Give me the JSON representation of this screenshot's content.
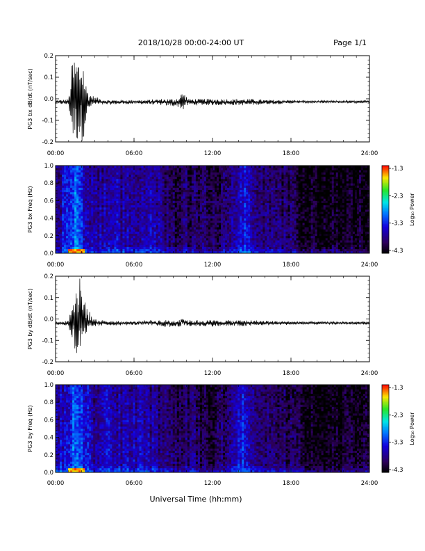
{
  "header": {
    "title": "2018/10/28  00:00-24:00 UT",
    "page": "Page 1/1"
  },
  "footer": {
    "xlabel": "Universal Time (hh:mm)"
  },
  "chart_data": [
    {
      "type": "line",
      "ylabel": "PG3 bx dB/dt (nT/sec)",
      "xlabel": "",
      "xlim": [
        0,
        24
      ],
      "ylim": [
        -0.2,
        0.2
      ],
      "x_ticks": [
        "00:00",
        "06:00",
        "12:00",
        "18:00",
        "24:00"
      ],
      "y_ticks": [
        "-0.2",
        "-0.1",
        "0.0",
        "0.1",
        "0.2"
      ],
      "baseline": -0.015,
      "series": [
        {
          "x": [
            0,
            0.5,
            1.0,
            1.3,
            1.5,
            1.7,
            1.9,
            2.1,
            2.3,
            2.5,
            2.7,
            3.0,
            3.5,
            4.0,
            5.0,
            6.0,
            7.0,
            8.0,
            9.0,
            9.5,
            9.7,
            9.9,
            10.2,
            11.0,
            12.0,
            13.0,
            14.0,
            14.5,
            15.0,
            16.0,
            17.0,
            18.0,
            19.0,
            20.0,
            21.0,
            22.0,
            23.0,
            24.0
          ],
          "y_max": [
            -0.005,
            -0.005,
            -0.0,
            0.2,
            0.2,
            0.2,
            0.2,
            0.2,
            0.08,
            0.04,
            0.02,
            0.01,
            0.0,
            -0.005,
            -0.005,
            -0.005,
            -0.005,
            0.0,
            0.0,
            0.01,
            0.04,
            0.02,
            0.0,
            0.0,
            0.0,
            0.0,
            0.0,
            0.0,
            0.0,
            -0.005,
            -0.005,
            -0.005,
            -0.008,
            -0.008,
            -0.008,
            -0.008,
            -0.008,
            -0.008
          ],
          "y_min": [
            -0.025,
            -0.025,
            -0.03,
            -0.2,
            -0.2,
            -0.2,
            -0.2,
            -0.2,
            -0.12,
            -0.07,
            -0.04,
            -0.03,
            -0.03,
            -0.028,
            -0.025,
            -0.025,
            -0.025,
            -0.03,
            -0.035,
            -0.04,
            -0.06,
            -0.04,
            -0.03,
            -0.03,
            -0.03,
            -0.03,
            -0.03,
            -0.03,
            -0.03,
            -0.025,
            -0.025,
            -0.022,
            -0.02,
            -0.02,
            -0.02,
            -0.02,
            -0.02,
            -0.02
          ]
        }
      ]
    },
    {
      "type": "heatmap",
      "ylabel": "PG3 bx Freq (Hz)",
      "xlabel": "",
      "xlim": [
        0,
        24
      ],
      "ylim": [
        0.0,
        1.0
      ],
      "x_ticks": [
        "00:00",
        "06:00",
        "12:00",
        "18:00",
        "24:00"
      ],
      "y_ticks": [
        "0.0",
        "0.2",
        "0.4",
        "0.6",
        "0.8",
        "1.0"
      ],
      "colorbar": {
        "label": "Log₁₀ Power",
        "range": [
          -4.3,
          -1.3
        ],
        "ticks": [
          "-1.3",
          "-2.3",
          "-3.3",
          "-4.3"
        ]
      },
      "activity_profile": {
        "x": [
          0,
          1.0,
          1.5,
          2.0,
          2.5,
          3.0,
          4.0,
          5.0,
          6.0,
          7.0,
          8.0,
          9.0,
          10.0,
          11.0,
          12.0,
          13.0,
          14.0,
          14.5,
          15.0,
          16.0,
          17.0,
          18.0,
          19.0,
          20.0,
          21.0,
          22.0,
          24.0
        ],
        "level": [
          -3.6,
          -3.3,
          -3.0,
          -3.2,
          -3.5,
          -3.6,
          -3.5,
          -3.6,
          -3.5,
          -3.6,
          -3.6,
          -3.9,
          -3.8,
          -3.9,
          -3.9,
          -3.8,
          -3.4,
          -3.3,
          -3.5,
          -3.7,
          -3.8,
          -3.9,
          -4.1,
          -4.2,
          -4.2,
          -4.1,
          -4.1
        ]
      }
    },
    {
      "type": "line",
      "ylabel": "PG3 by dB/dt (nT/sec)",
      "xlabel": "",
      "xlim": [
        0,
        24
      ],
      "ylim": [
        -0.2,
        0.2
      ],
      "x_ticks": [
        "00:00",
        "06:00",
        "12:00",
        "18:00",
        "24:00"
      ],
      "y_ticks": [
        "-0.2",
        "-0.1",
        "0.0",
        "0.1",
        "0.2"
      ],
      "baseline": -0.02,
      "series": [
        {
          "x": [
            0,
            0.5,
            1.0,
            1.3,
            1.5,
            1.7,
            1.9,
            2.1,
            2.3,
            2.5,
            2.7,
            3.0,
            3.5,
            4.0,
            5.0,
            6.0,
            7.0,
            8.0,
            9.0,
            9.5,
            9.7,
            9.9,
            10.2,
            11.0,
            12.0,
            13.0,
            14.0,
            14.5,
            15.0,
            16.0,
            17.0,
            18.0,
            19.0,
            20.0,
            21.0,
            22.0,
            23.0,
            24.0
          ],
          "y_max": [
            -0.012,
            -0.012,
            -0.005,
            0.12,
            0.2,
            0.18,
            0.2,
            0.12,
            0.1,
            0.05,
            0.02,
            0.0,
            -0.005,
            -0.008,
            -0.01,
            -0.01,
            -0.005,
            -0.005,
            -0.005,
            0.0,
            0.015,
            0.0,
            -0.005,
            -0.005,
            -0.005,
            -0.005,
            -0.005,
            -0.005,
            -0.005,
            -0.008,
            -0.01,
            -0.01,
            -0.012,
            -0.012,
            -0.012,
            -0.012,
            -0.012,
            -0.012
          ],
          "y_min": [
            -0.028,
            -0.028,
            -0.035,
            -0.12,
            -0.2,
            -0.2,
            -0.2,
            -0.16,
            -0.12,
            -0.08,
            -0.05,
            -0.035,
            -0.033,
            -0.03,
            -0.03,
            -0.028,
            -0.03,
            -0.035,
            -0.04,
            -0.035,
            -0.035,
            -0.035,
            -0.035,
            -0.035,
            -0.035,
            -0.035,
            -0.035,
            -0.035,
            -0.033,
            -0.03,
            -0.028,
            -0.028,
            -0.026,
            -0.026,
            -0.026,
            -0.026,
            -0.026,
            -0.026
          ]
        }
      ]
    },
    {
      "type": "heatmap",
      "ylabel": "PG3 by Freq (Hz)",
      "xlabel": "",
      "xlim": [
        0,
        24
      ],
      "ylim": [
        0.0,
        1.0
      ],
      "x_ticks": [
        "00:00",
        "06:00",
        "12:00",
        "18:00",
        "24:00"
      ],
      "y_ticks": [
        "0.0",
        "0.2",
        "0.4",
        "0.6",
        "0.8",
        "1.0"
      ],
      "colorbar": {
        "label": "Log₁₀ Power",
        "range": [
          -4.3,
          -1.3
        ],
        "ticks": [
          "-1.3",
          "-2.3",
          "-3.3",
          "-4.3"
        ]
      },
      "activity_profile": {
        "x": [
          0,
          1.0,
          1.5,
          2.0,
          2.5,
          3.0,
          4.0,
          5.0,
          6.0,
          7.0,
          8.0,
          9.0,
          10.0,
          11.0,
          12.0,
          13.0,
          14.0,
          14.5,
          15.0,
          16.0,
          17.0,
          18.0,
          19.0,
          20.0,
          21.0,
          22.0,
          24.0
        ],
        "level": [
          -3.6,
          -3.3,
          -3.0,
          -3.2,
          -3.4,
          -3.6,
          -3.5,
          -3.6,
          -3.5,
          -3.6,
          -3.7,
          -3.9,
          -3.8,
          -3.9,
          -4.0,
          -3.8,
          -3.4,
          -3.3,
          -3.5,
          -3.7,
          -3.8,
          -3.9,
          -4.1,
          -4.2,
          -4.2,
          -4.1,
          -4.1
        ]
      }
    }
  ]
}
